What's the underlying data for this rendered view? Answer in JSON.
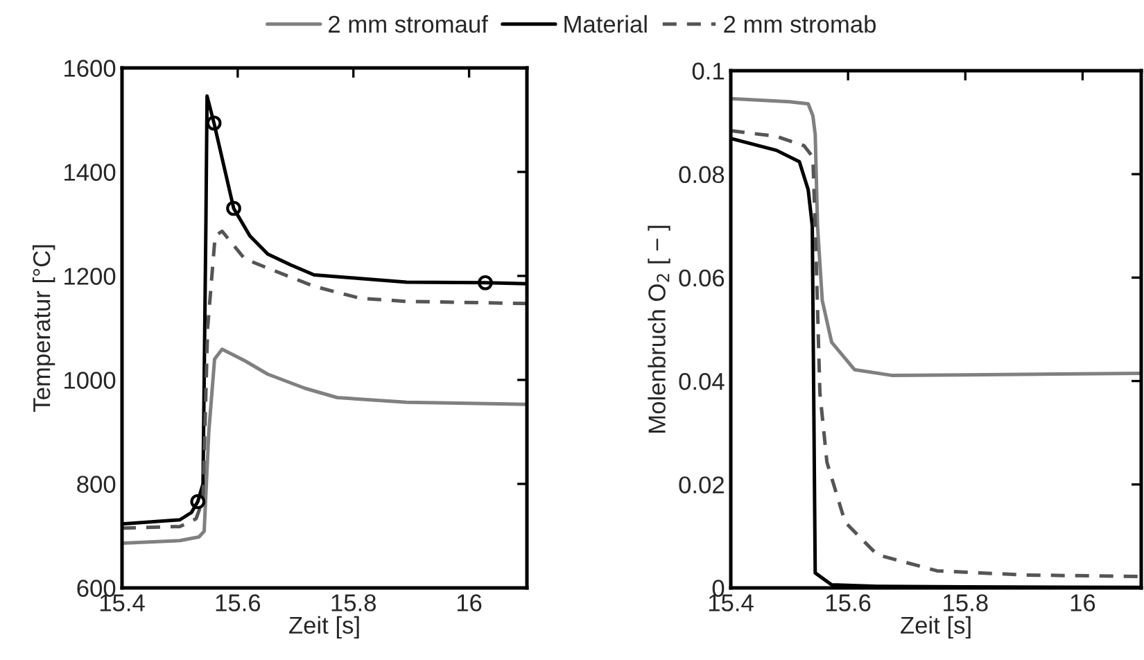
{
  "chart_data": [
    {
      "type": "line",
      "xlabel": "Zeit [s]",
      "ylabel": "Temperatur [°C]",
      "xlim": [
        15.4,
        16.1
      ],
      "ylim": [
        600,
        1600
      ],
      "xticks": [
        15.4,
        15.6,
        15.8,
        16
      ],
      "yticks": [
        600,
        800,
        1000,
        1200,
        1400,
        1600
      ],
      "grid": false,
      "legend": "top",
      "series": [
        {
          "name": "2 mm stromauf",
          "color": "#808080",
          "line_style": "solid",
          "x": [
            15.4,
            15.5,
            15.533,
            15.542,
            15.55,
            15.56,
            15.573,
            15.612,
            15.652,
            15.716,
            15.772,
            15.892,
            16.0,
            16.1
          ],
          "values": [
            686,
            691,
            698,
            709,
            900,
            1040,
            1059,
            1037,
            1011,
            984,
            966,
            957,
            955,
            953
          ]
        },
        {
          "name": "Material",
          "color": "#000000",
          "line_style": "solid",
          "x": [
            15.4,
            15.5,
            15.52,
            15.531,
            15.54,
            15.545,
            15.547,
            15.559,
            15.593,
            15.621,
            15.652,
            15.692,
            15.732,
            15.812,
            15.892,
            16.028,
            16.1
          ],
          "values": [
            723,
            731,
            745,
            766,
            800,
            1300,
            1546,
            1494,
            1330,
            1277,
            1242,
            1221,
            1202,
            1195,
            1188,
            1187,
            1185
          ]
        },
        {
          "name": "2 mm stromab",
          "color": "#555555",
          "line_style": "dashed",
          "x": [
            15.4,
            15.5,
            15.528,
            15.54,
            15.548,
            15.561,
            15.573,
            15.612,
            15.652,
            15.732,
            15.812,
            15.892,
            16.1
          ],
          "values": [
            715,
            718,
            733,
            770,
            1100,
            1277,
            1286,
            1233,
            1215,
            1180,
            1157,
            1151,
            1147
          ]
        },
        {
          "type": "scatter",
          "color": "#000000",
          "marker": "circle",
          "x": [
            15.531,
            15.559,
            15.593,
            16.028
          ],
          "values": [
            766,
            1494,
            1330,
            1187
          ]
        }
      ]
    },
    {
      "type": "line",
      "xlabel": "Zeit [s]",
      "ylabel": "Molenbruch O$_{2}$ [ − ]",
      "xlim": [
        15.4,
        16.1
      ],
      "ylim": [
        0,
        0.1
      ],
      "xticks": [
        15.4,
        15.6,
        15.8,
        16
      ],
      "yticks": [
        {
          "value": 0,
          "label": "0"
        },
        0.02,
        0.04,
        0.06,
        0.08,
        0.1
      ],
      "grid": false,
      "series": [
        {
          "color": "#808080",
          "line_style": "solid",
          "x": [
            15.4,
            15.5,
            15.532,
            15.54,
            15.544,
            15.548,
            15.556,
            15.572,
            15.611,
            15.674,
            15.8,
            16.1
          ],
          "values": [
            0.0946,
            0.094,
            0.0936,
            0.0913,
            0.0877,
            0.0699,
            0.0556,
            0.0475,
            0.0422,
            0.0411,
            0.0412,
            0.0415
          ]
        },
        {
          "color": "#000000",
          "line_style": "solid",
          "x": [
            15.4,
            15.478,
            15.517,
            15.532,
            15.539,
            15.542,
            15.544,
            15.572,
            15.65,
            15.8,
            16.1
          ],
          "values": [
            0.0869,
            0.0846,
            0.0824,
            0.077,
            0.07,
            0.03,
            0.0029,
            0.0006,
            0.0003,
            0.0002,
            0.0001
          ]
        },
        {
          "color": "#555555",
          "line_style": "dashed",
          "x": [
            15.4,
            15.478,
            15.525,
            15.54,
            15.544,
            15.552,
            15.564,
            15.595,
            15.65,
            15.752,
            15.9,
            16.1
          ],
          "values": [
            0.0884,
            0.0873,
            0.0855,
            0.0833,
            0.0699,
            0.0377,
            0.0243,
            0.0127,
            0.0064,
            0.0033,
            0.0025,
            0.0022
          ]
        }
      ]
    }
  ]
}
